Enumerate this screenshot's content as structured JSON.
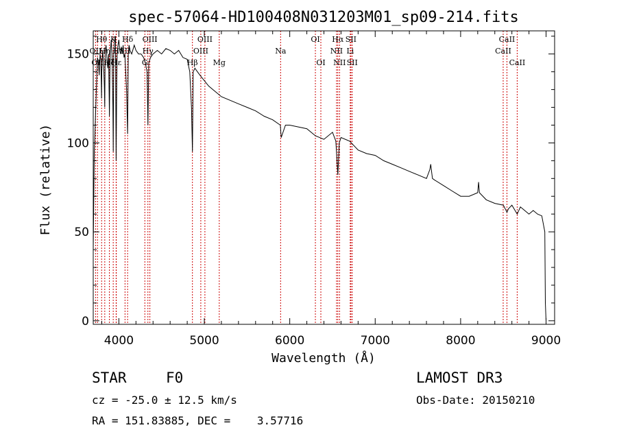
{
  "chart_data": {
    "type": "line",
    "title": "spec-57064-HD100408N031203M01_sp09-214.fits",
    "xlabel": "Wavelength (Å)",
    "ylabel": "Flux (relative)",
    "xlim": [
      3700,
      9100
    ],
    "ylim": [
      -2,
      163
    ],
    "xticks": [
      4000,
      5000,
      6000,
      7000,
      8000,
      9000
    ],
    "yticks": [
      0,
      50,
      100,
      150
    ],
    "series": [
      {
        "name": "spectrum",
        "x": [
          3700,
          3712,
          3720,
          3730,
          3740,
          3750,
          3760,
          3770,
          3780,
          3790,
          3797,
          3800,
          3810,
          3820,
          3830,
          3835,
          3840,
          3850,
          3860,
          3870,
          3880,
          3889,
          3895,
          3900,
          3910,
          3920,
          3930,
          3934,
          3940,
          3950,
          3960,
          3968,
          3975,
          3980,
          3990,
          4000,
          4010,
          4020,
          4030,
          4040,
          4050,
          4060,
          4070,
          4080,
          4090,
          4102,
          4110,
          4120,
          4130,
          4150,
          4180,
          4200,
          4230,
          4260,
          4290,
          4310,
          4330,
          4340,
          4350,
          4370,
          4400,
          4450,
          4500,
          4550,
          4600,
          4650,
          4700,
          4750,
          4800,
          4830,
          4850,
          4861,
          4870,
          4890,
          4920,
          4950,
          5000,
          5050,
          5100,
          5150,
          5200,
          5300,
          5400,
          5500,
          5600,
          5700,
          5800,
          5890,
          5900,
          5950,
          6000,
          6100,
          6200,
          6300,
          6400,
          6500,
          6540,
          6563,
          6580,
          6600,
          6700,
          6800,
          6900,
          7000,
          7100,
          7200,
          7300,
          7400,
          7500,
          7600,
          7640,
          7650,
          7660,
          7670,
          7700,
          7800,
          7900,
          8000,
          8100,
          8200,
          8210,
          8220,
          8300,
          8400,
          8500,
          8542,
          8560,
          8600,
          8662,
          8700,
          8750,
          8800,
          8850,
          8900,
          8950,
          8985,
          8992,
          9000
        ],
        "y": [
          40,
          95,
          105,
          120,
          135,
          148,
          145,
          138,
          150,
          147,
          125,
          140,
          152,
          146,
          132,
          120,
          150,
          155,
          148,
          142,
          150,
          115,
          140,
          150,
          158,
          150,
          120,
          95,
          150,
          158,
          160,
          90,
          135,
          150,
          155,
          158,
          152,
          150,
          154,
          150,
          155,
          148,
          150,
          140,
          130,
          105,
          150,
          155,
          152,
          150,
          155,
          152,
          150,
          150,
          148,
          145,
          140,
          110,
          145,
          148,
          150,
          152,
          150,
          153,
          152,
          150,
          152,
          148,
          147,
          140,
          120,
          95,
          140,
          142,
          140,
          138,
          135,
          132,
          130,
          128,
          126,
          124,
          122,
          120,
          118,
          115,
          113,
          110,
          103,
          110,
          110,
          109,
          108,
          104,
          102,
          106,
          101,
          82,
          100,
          103,
          101,
          96,
          94,
          93,
          90,
          88,
          86,
          84,
          82,
          80,
          85,
          88,
          84,
          80,
          79,
          76,
          73,
          70,
          70,
          72,
          78,
          72,
          68,
          66,
          65,
          61,
          63,
          65,
          60,
          64,
          62,
          60,
          62,
          60,
          59,
          50,
          10,
          0
        ]
      }
    ],
    "line_markers": [
      {
        "wavelength": 3727,
        "label": "OII",
        "row": 2
      },
      {
        "wavelength": 3750,
        "label": "OII",
        "row": 3
      },
      {
        "wavelength": 3798,
        "label": "Hθ",
        "row": 1
      },
      {
        "wavelength": 3835,
        "label": "Hη",
        "row": 2
      },
      {
        "wavelength": 3889,
        "label": "Hζ",
        "row": 3
      },
      {
        "wavelength": 3934,
        "label": "K",
        "row": 1
      },
      {
        "wavelength": 3968,
        "label": "H",
        "row": 2
      },
      {
        "wavelength": 3970,
        "label": "Hε",
        "row": 3
      },
      {
        "wavelength": 4102,
        "label": "Hδ",
        "row": 1
      },
      {
        "wavelength": 4072,
        "label": "SII",
        "row": 2
      },
      {
        "wavelength": 4304,
        "label": "G",
        "row": 3
      },
      {
        "wavelength": 4340,
        "label": "Hγ",
        "row": 2
      },
      {
        "wavelength": 4363,
        "label": "OIII",
        "row": 1
      },
      {
        "wavelength": 4861,
        "label": "Hβ",
        "row": 3
      },
      {
        "wavelength": 4959,
        "label": "OIII",
        "row": 2
      },
      {
        "wavelength": 5007,
        "label": "OIII",
        "row": 1
      },
      {
        "wavelength": 5175,
        "label": "Mg",
        "row": 3
      },
      {
        "wavelength": 5893,
        "label": "Na",
        "row": 2
      },
      {
        "wavelength": 6300,
        "label": "OI",
        "row": 1
      },
      {
        "wavelength": 6364,
        "label": "OI",
        "row": 3
      },
      {
        "wavelength": 6548,
        "label": "NII",
        "row": 2
      },
      {
        "wavelength": 6563,
        "label": "Hα",
        "row": 1
      },
      {
        "wavelength": 6583,
        "label": "NII",
        "row": 3
      },
      {
        "wavelength": 6716,
        "label": "SII",
        "row": 1
      },
      {
        "wavelength": 6708,
        "label": "Li",
        "row": 2
      },
      {
        "wavelength": 6731,
        "label": "SII",
        "row": 3
      },
      {
        "wavelength": 8498,
        "label": "CaII",
        "row": 2
      },
      {
        "wavelength": 8542,
        "label": "CaII",
        "row": 1
      },
      {
        "wavelength": 8662,
        "label": "CaII",
        "row": 3
      }
    ]
  },
  "info": {
    "object_class": "STAR",
    "subclass": "F0",
    "survey": "LAMOST DR3",
    "redshift": "cz = -25.0 ± 12.5 km/s",
    "obs_date": "Obs-Date: 20150210",
    "coords": "RA = 151.83885, DEC =    3.57716"
  },
  "colors": {
    "spectrum": "#000000",
    "marker": "#cc0000"
  }
}
